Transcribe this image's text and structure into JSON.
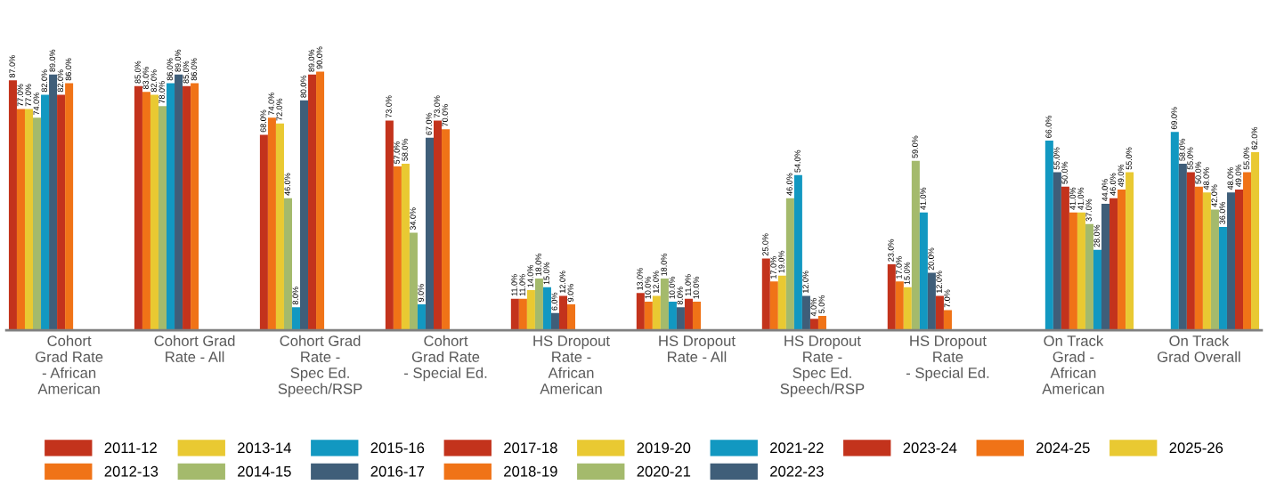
{
  "chart_data": {
    "type": "bar",
    "categories": [
      "Cohort\nGrad Rate\n- African\nAmerican",
      "Cohort Grad\nRate - All",
      "Cohort Grad\nRate -\nSpec Ed.\nSpeech/RSP",
      "Cohort\nGrad Rate\n- Special Ed.",
      "HS Dropout\nRate -\nAfrican\nAmerican",
      "HS Dropout\nRate - All",
      "HS Dropout\nRate -\nSpec Ed.\nSpeech/RSP",
      "HS Dropout\nRate\n- Special Ed.",
      "On Track\nGrad -\nAfrican\nAmerican",
      "On Track\nGrad Overall"
    ],
    "tick_labels": "x",
    "legend": "bottom",
    "grid": false,
    "series": [
      {
        "name": "2011-12",
        "color": "#c3331c",
        "values": [
          87,
          85,
          68,
          73,
          11,
          13,
          25,
          23,
          null,
          null
        ],
        "value_labels": [
          "87.0%",
          "85.0%",
          "68.0%",
          "73.0%",
          "11.0%",
          "13.0%",
          "25.0%",
          "23.0%",
          null,
          null
        ]
      },
      {
        "name": "2012-13",
        "color": "#f07317",
        "values": [
          77,
          83,
          74,
          57,
          11,
          10,
          17,
          17,
          null,
          null
        ],
        "value_labels": [
          "77.0%",
          "83.0%",
          "74.0%",
          "57.0%",
          "11.0%",
          "10.0%",
          "17.0%",
          "17.0%",
          null,
          null
        ]
      },
      {
        "name": "2013-14",
        "color": "#e9c932",
        "values": [
          77,
          82,
          72,
          58,
          14,
          12,
          19,
          15,
          null,
          null
        ],
        "value_labels": [
          "77.0%",
          "82.0%",
          "72.0%",
          "58.0%",
          "14.0%",
          "12.0%",
          "19.0%",
          "15.0%",
          null,
          null
        ]
      },
      {
        "name": "2014-15",
        "color": "#a4ba6c",
        "values": [
          74,
          78,
          46,
          34,
          18,
          18,
          46,
          59,
          null,
          null
        ],
        "value_labels": [
          "74.0%",
          "78.0%",
          "46.0%",
          "34.0%",
          "18.0%",
          "18.0%",
          "46.0%",
          "59.0%",
          null,
          null
        ]
      },
      {
        "name": "2015-16",
        "color": "#1298c1",
        "values": [
          82,
          86,
          8,
          9,
          15,
          10,
          54,
          41,
          66,
          69
        ],
        "value_labels": [
          "82.0%",
          "86.0%",
          "8.0%",
          "9.0%",
          "15.0%",
          "10.0%",
          "54.0%",
          "41.0%",
          "66.0%",
          "69.0%"
        ]
      },
      {
        "name": "2016-17",
        "color": "#3f5e79",
        "values": [
          89,
          89,
          80,
          67,
          6,
          8,
          12,
          20,
          55,
          58
        ],
        "value_labels": [
          "89.0%",
          "89.0%",
          "80.0%",
          "67.0%",
          "6.0%",
          "8.0%",
          "12.0%",
          "20.0%",
          "55.0%",
          "58.0%"
        ]
      },
      {
        "name": "2017-18",
        "color": "#c3331c",
        "values": [
          82,
          85,
          89,
          73,
          12,
          11,
          4,
          12,
          50,
          55
        ],
        "value_labels": [
          "82.0%",
          "85.0%",
          "89.0%",
          "73.0%",
          "12.0%",
          "11.0%",
          "4.0%",
          "12.0%",
          "50.0%",
          "55.0%"
        ]
      },
      {
        "name": "2018-19",
        "color": "#f07317",
        "values": [
          86,
          86,
          90,
          70,
          9,
          10,
          5,
          7,
          41,
          50
        ],
        "value_labels": [
          "86.0%",
          "86.0%",
          "90.0%",
          "70.0%",
          "9.0%",
          "10.0%",
          "5.0%",
          "7.0%",
          "41.0%",
          "50.0%"
        ]
      },
      {
        "name": "2019-20",
        "color": "#e9c932",
        "values": [
          null,
          null,
          null,
          null,
          null,
          null,
          null,
          null,
          41,
          48
        ],
        "value_labels": [
          null,
          null,
          null,
          null,
          null,
          null,
          null,
          null,
          "41.0%",
          "48.0%"
        ]
      },
      {
        "name": "2020-21",
        "color": "#a4ba6c",
        "values": [
          null,
          null,
          null,
          null,
          null,
          null,
          null,
          null,
          37,
          42
        ],
        "value_labels": [
          null,
          null,
          null,
          null,
          null,
          null,
          null,
          null,
          "37.0%",
          "42.0%"
        ]
      },
      {
        "name": "2021-22",
        "color": "#1298c1",
        "values": [
          null,
          null,
          null,
          null,
          null,
          null,
          null,
          null,
          28,
          36
        ],
        "value_labels": [
          null,
          null,
          null,
          null,
          null,
          null,
          null,
          null,
          "28.0%",
          "36.0%"
        ]
      },
      {
        "name": "2022-23",
        "color": "#3f5e79",
        "values": [
          null,
          null,
          null,
          null,
          null,
          null,
          null,
          null,
          44,
          48
        ],
        "value_labels": [
          null,
          null,
          null,
          null,
          null,
          null,
          null,
          null,
          "44.0%",
          "48.0%"
        ]
      },
      {
        "name": "2023-24",
        "color": "#c3331c",
        "values": [
          null,
          null,
          null,
          null,
          null,
          null,
          null,
          null,
          46,
          49
        ],
        "value_labels": [
          null,
          null,
          null,
          null,
          null,
          null,
          null,
          null,
          "46.0%",
          "49.0%"
        ]
      },
      {
        "name": "2024-25",
        "color": "#f07317",
        "values": [
          null,
          null,
          null,
          null,
          null,
          null,
          null,
          null,
          49,
          55
        ],
        "value_labels": [
          null,
          null,
          null,
          null,
          null,
          null,
          null,
          null,
          "49.0%",
          "55.0%"
        ]
      },
      {
        "name": "2025-26",
        "color": "#e9c932",
        "values": [
          null,
          null,
          null,
          null,
          null,
          null,
          null,
          null,
          55,
          62
        ],
        "value_labels": [
          null,
          null,
          null,
          null,
          null,
          null,
          null,
          null,
          "55.0%",
          "62.0%"
        ]
      }
    ]
  }
}
